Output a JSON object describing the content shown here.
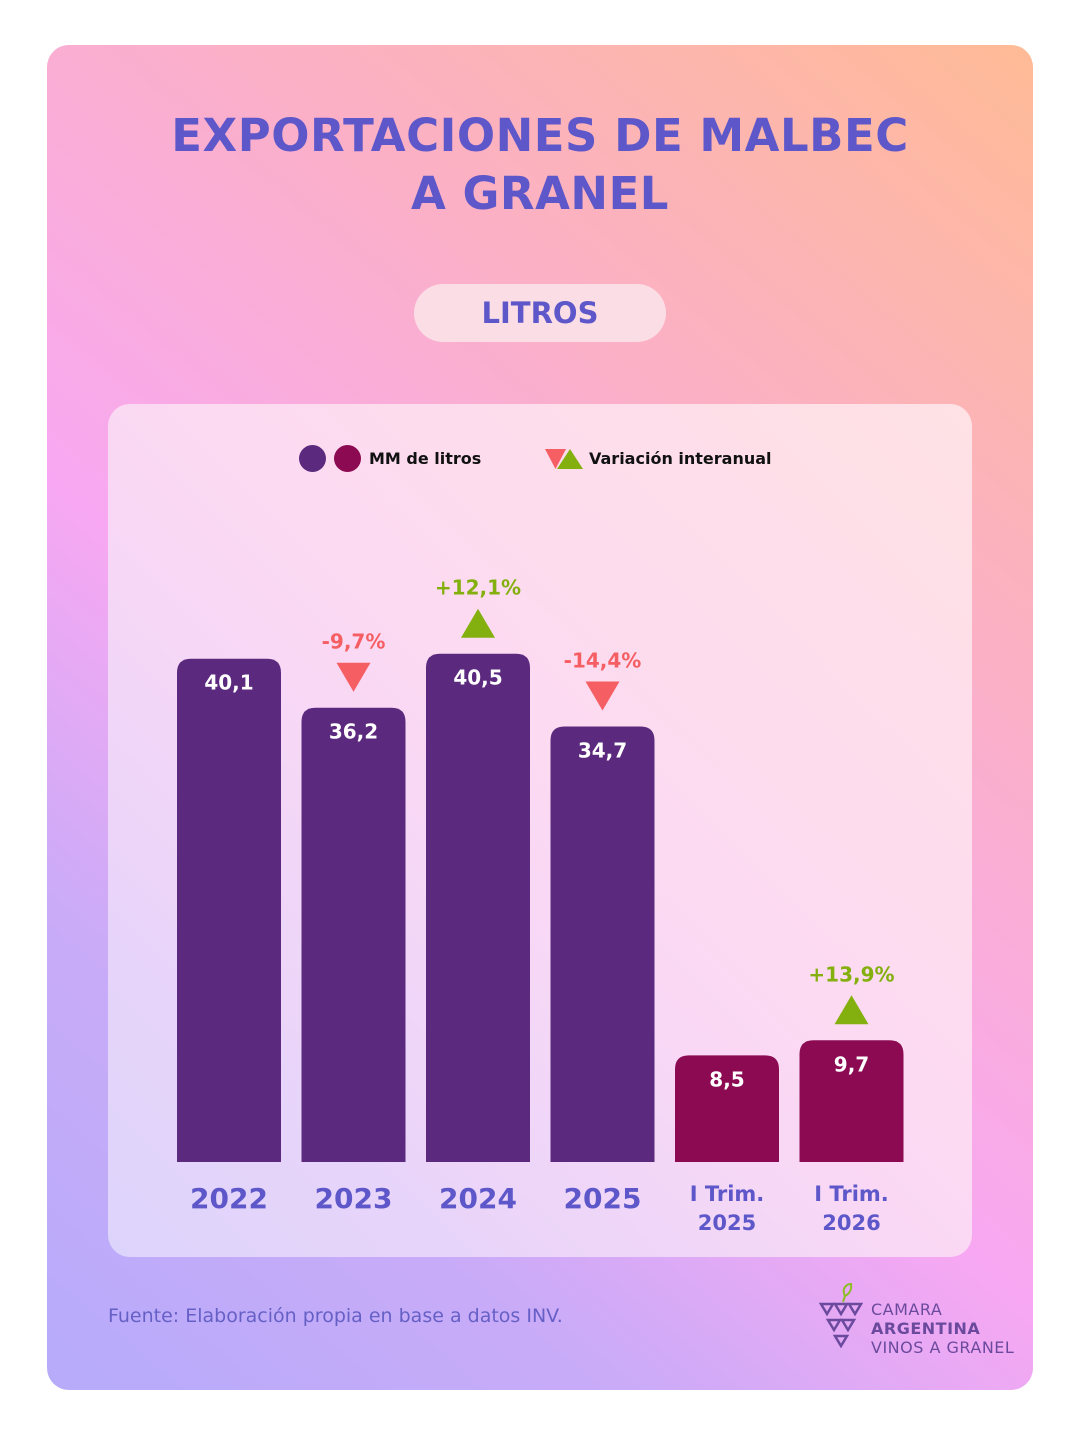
{
  "title_lines": [
    "EXPORTACIONES DE MALBEC",
    "A GRANEL"
  ],
  "unit_pill": "LITROS",
  "legend": {
    "series_label": "MM de litros",
    "variation_label": "Variación interanual"
  },
  "colors": {
    "annual_bar": "#5b2a7e",
    "quarter_bar": "#8c0a52",
    "increase": "#84b00f",
    "decrease": "#f55f63",
    "axis_label": "#5e57c9"
  },
  "chart_data": {
    "type": "bar",
    "title": "EXPORTACIONES DE MALBEC A GRANEL",
    "unit": "LITROS",
    "ylabel": "MM de litros",
    "ylim": [
      0,
      45
    ],
    "categories": [
      [
        "2022"
      ],
      [
        "2023"
      ],
      [
        "2024"
      ],
      [
        "2025"
      ],
      [
        "I Trim.",
        "2025"
      ],
      [
        "I Trim.",
        "2026"
      ]
    ],
    "values": [
      40.1,
      36.2,
      40.5,
      34.7,
      8.5,
      9.7
    ],
    "value_labels": [
      "40,1",
      "36,2",
      "40,5",
      "34,7",
      "8,5",
      "9,7"
    ],
    "bar_groups": [
      "annual",
      "annual",
      "annual",
      "annual",
      "quarter",
      "quarter"
    ],
    "variation": [
      null,
      {
        "label": "-9,7%",
        "direction": "down"
      },
      {
        "label": "+12,1%",
        "direction": "up"
      },
      {
        "label": "-14,4%",
        "direction": "down"
      },
      null,
      {
        "label": "+13,9%",
        "direction": "up"
      }
    ]
  },
  "source": "Fuente: Elaboración propia en base a datos INV.",
  "logo": {
    "line1": "CAMARA",
    "line2": "ARGENTINA",
    "line3": "VINOS A GRANEL"
  }
}
